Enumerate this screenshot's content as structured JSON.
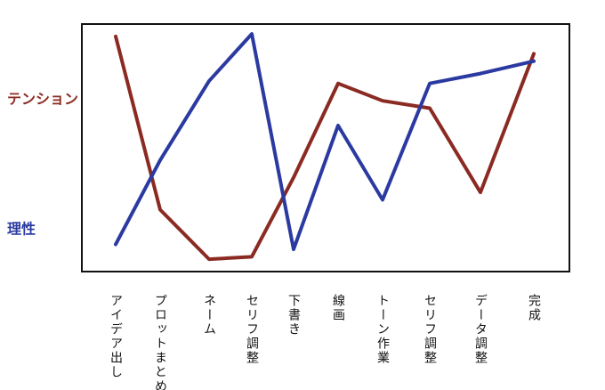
{
  "chart_data": {
    "type": "line",
    "categories": [
      "アイデア出し",
      "プロットまとめ",
      "ネーム",
      "セリフ調整",
      "下書き",
      "線画",
      "トーン作業",
      "セリフ調整",
      "データ調整",
      "完成"
    ],
    "series": [
      {
        "name": "テンション",
        "color": "#8b2a22",
        "values": [
          95,
          25,
          5,
          6,
          38,
          76,
          69,
          66,
          32,
          88
        ]
      },
      {
        "name": "理性",
        "color": "#2b3aa0",
        "values": [
          11,
          45,
          77,
          96,
          9,
          59,
          29,
          76,
          80,
          85
        ]
      }
    ],
    "ylim": [
      0,
      100
    ]
  }
}
